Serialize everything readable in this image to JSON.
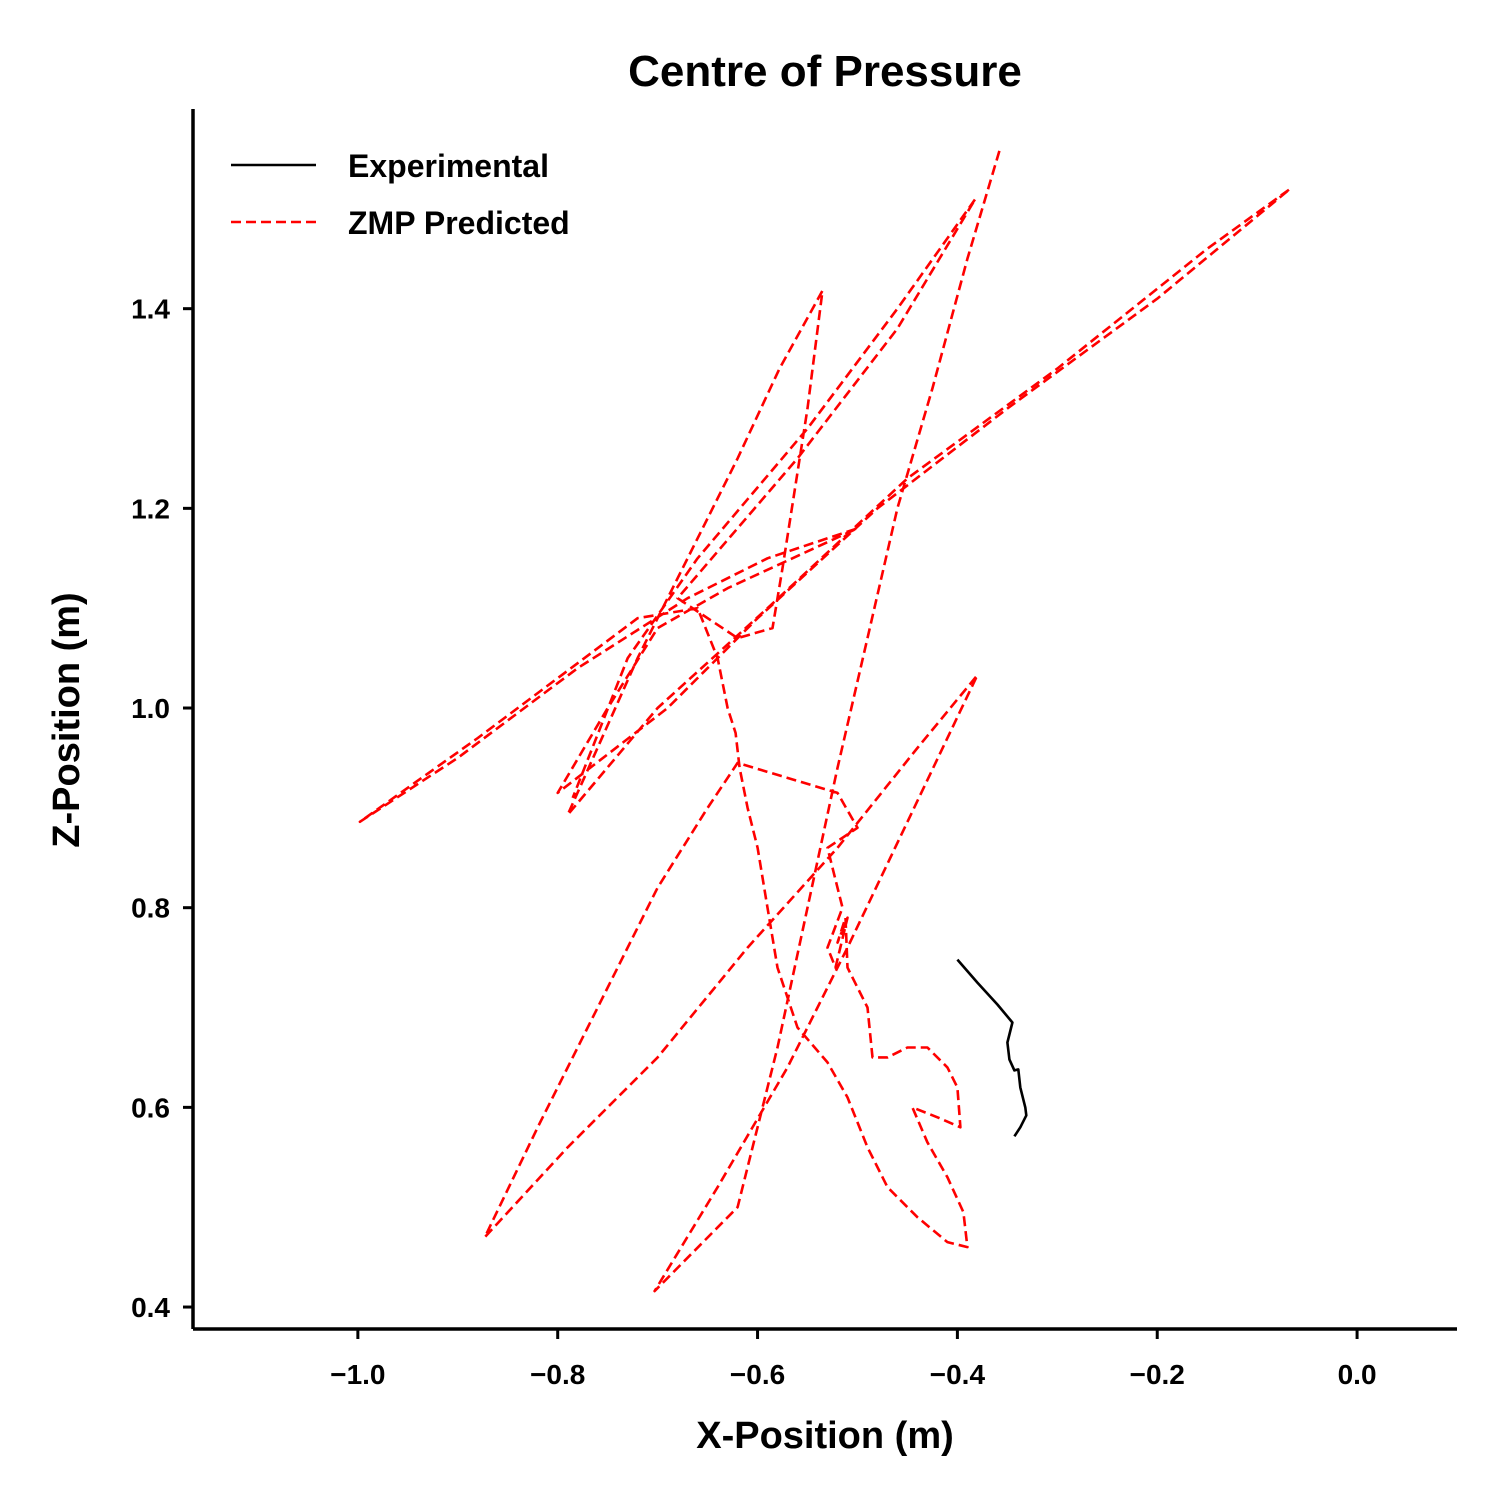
{
  "chart_data": {
    "type": "line",
    "title": "Centre of Pressure",
    "xlabel": "X-Position (m)",
    "ylabel": "Z-Position (m)",
    "xlim": [
      -1.165,
      0.1
    ],
    "ylim": [
      0.378,
      1.6
    ],
    "xticks": [
      -1.0,
      -0.8,
      -0.6,
      -0.4,
      -0.2,
      0.0
    ],
    "xtick_labels": [
      "−1.0",
      "−0.8",
      "−0.6",
      "−0.4",
      "−0.2",
      "0.0"
    ],
    "yticks": [
      0.4,
      0.6,
      0.8,
      1.0,
      1.2,
      1.4
    ],
    "ytick_labels": [
      "0.4",
      "0.6",
      "0.8",
      "1.0",
      "1.2",
      "1.4"
    ],
    "grid": false,
    "legend_position": "top-left",
    "series": [
      {
        "name": "Experimental",
        "color": "#000000",
        "style": "solid",
        "points": [
          [
            -0.4,
            0.748
          ],
          [
            -0.38,
            0.725
          ],
          [
            -0.36,
            0.703
          ],
          [
            -0.345,
            0.685
          ],
          [
            -0.35,
            0.665
          ],
          [
            -0.348,
            0.648
          ],
          [
            -0.343,
            0.637
          ],
          [
            -0.339,
            0.638
          ],
          [
            -0.337,
            0.62
          ],
          [
            -0.332,
            0.6
          ],
          [
            -0.331,
            0.592
          ],
          [
            -0.337,
            0.58
          ],
          [
            -0.343,
            0.571
          ]
        ]
      },
      {
        "name": "ZMP Predicted",
        "color": "#ff0000",
        "style": "dashed",
        "points": [
          [
            -0.358,
            1.558
          ],
          [
            -0.39,
            1.45
          ],
          [
            -0.425,
            1.32
          ],
          [
            -0.46,
            1.2
          ],
          [
            -0.49,
            1.07
          ],
          [
            -0.52,
            0.94
          ],
          [
            -0.55,
            0.8
          ],
          [
            -0.58,
            0.66
          ],
          [
            -0.62,
            0.5
          ],
          [
            -0.703,
            0.416
          ],
          [
            -0.64,
            0.52
          ],
          [
            -0.57,
            0.64
          ],
          [
            -0.51,
            0.76
          ],
          [
            -0.38,
            1.033
          ],
          [
            -0.44,
            0.96
          ],
          [
            -0.52,
            0.86
          ],
          [
            -0.61,
            0.76
          ],
          [
            -0.7,
            0.65
          ],
          [
            -0.79,
            0.56
          ],
          [
            -0.873,
            0.47
          ],
          [
            -0.82,
            0.58
          ],
          [
            -0.76,
            0.7
          ],
          [
            -0.7,
            0.82
          ],
          [
            -0.65,
            0.9
          ],
          [
            -0.62,
            0.945
          ],
          [
            -0.52,
            0.915
          ],
          [
            -0.5,
            0.88
          ],
          [
            -0.53,
            0.86
          ],
          [
            -0.515,
            0.8
          ],
          [
            -0.53,
            0.76
          ],
          [
            -0.522,
            0.74
          ],
          [
            -0.51,
            0.79
          ],
          [
            -0.52,
            0.765
          ],
          [
            -0.512,
            0.79
          ],
          [
            -0.51,
            0.74
          ],
          [
            -0.49,
            0.7
          ],
          [
            -0.485,
            0.65
          ],
          [
            -0.47,
            0.65
          ],
          [
            -0.45,
            0.66
          ],
          [
            -0.43,
            0.66
          ],
          [
            -0.41,
            0.64
          ],
          [
            -0.4,
            0.62
          ],
          [
            -0.397,
            0.58
          ],
          [
            -0.42,
            0.59
          ],
          [
            -0.445,
            0.6
          ],
          [
            -0.43,
            0.565
          ],
          [
            -0.41,
            0.53
          ],
          [
            -0.394,
            0.495
          ],
          [
            -0.39,
            0.46
          ],
          [
            -0.41,
            0.465
          ],
          [
            -0.44,
            0.49
          ],
          [
            -0.47,
            0.52
          ],
          [
            -0.49,
            0.56
          ],
          [
            -0.51,
            0.61
          ],
          [
            -0.53,
            0.645
          ],
          [
            -0.56,
            0.68
          ],
          [
            -0.58,
            0.74
          ],
          [
            -0.59,
            0.8
          ],
          [
            -0.6,
            0.86
          ],
          [
            -0.61,
            0.9
          ],
          [
            -0.618,
            0.94
          ],
          [
            -0.622,
            0.975
          ],
          [
            -0.63,
            1.0
          ],
          [
            -0.64,
            1.05
          ],
          [
            -0.66,
            1.1
          ],
          [
            -0.72,
            1.09
          ],
          [
            -0.8,
            1.03
          ],
          [
            -0.88,
            0.97
          ],
          [
            -0.998,
            0.886
          ],
          [
            -0.9,
            0.95
          ],
          [
            -0.78,
            1.04
          ],
          [
            -0.67,
            1.11
          ],
          [
            -0.59,
            1.15
          ],
          [
            -0.5,
            1.18
          ],
          [
            -0.63,
            1.12
          ],
          [
            -0.7,
            1.08
          ],
          [
            -0.75,
            1.0
          ],
          [
            -0.8,
            0.915
          ],
          [
            -0.69,
            1.0
          ],
          [
            -0.6,
            1.09
          ],
          [
            -0.48,
            1.2
          ],
          [
            -0.35,
            1.3
          ],
          [
            -0.2,
            1.41
          ],
          [
            -0.067,
            1.52
          ],
          [
            -0.15,
            1.46
          ],
          [
            -0.3,
            1.34
          ],
          [
            -0.45,
            1.23
          ],
          [
            -0.59,
            1.1
          ],
          [
            -0.7,
            1.0
          ],
          [
            -0.79,
            0.893
          ],
          [
            -0.72,
            1.05
          ],
          [
            -0.67,
            1.15
          ],
          [
            -0.62,
            1.25
          ],
          [
            -0.578,
            1.34
          ],
          [
            -0.535,
            1.418
          ],
          [
            -0.55,
            1.3
          ],
          [
            -0.575,
            1.14
          ],
          [
            -0.585,
            1.08
          ],
          [
            -0.62,
            1.07
          ],
          [
            -0.68,
            1.11
          ],
          [
            -0.56,
            1.25
          ],
          [
            -0.46,
            1.38
          ],
          [
            -0.382,
            1.51
          ],
          [
            -0.46,
            1.4
          ],
          [
            -0.55,
            1.28
          ],
          [
            -0.66,
            1.15
          ],
          [
            -0.73,
            1.05
          ],
          [
            -0.785,
            0.91
          ]
        ]
      }
    ]
  }
}
